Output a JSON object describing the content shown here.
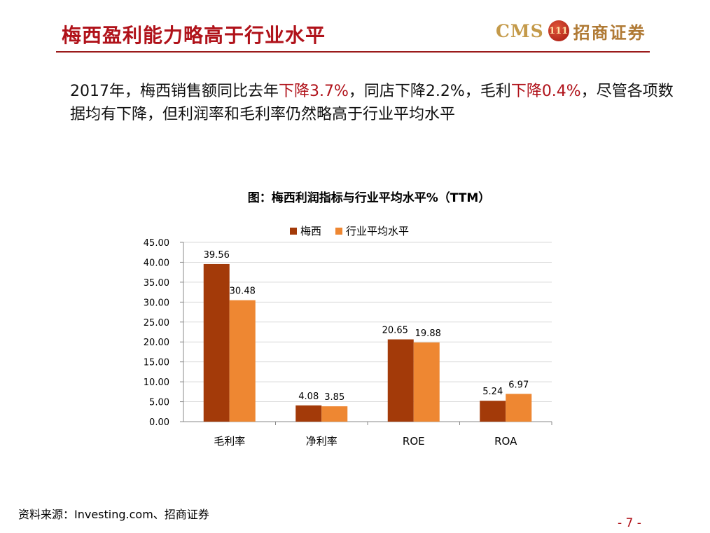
{
  "header": {
    "title": "梅西盈利能力略高于行业水平",
    "logo_cms": "CMS",
    "logo_mark": "111",
    "logo_cn": "招商证券"
  },
  "body": {
    "p1": "2017年，梅西销售额同比去年",
    "p2": "下降3.7%",
    "p3": "，同店下降2.2%，毛利",
    "p4": "下降0.4%",
    "p5": "，尽管各项数据均有下降，但利润率和毛利率仍然略高于行业平均水平"
  },
  "chart_data": {
    "type": "bar",
    "title": "图：梅西利润指标与行业平均水平%（TTM）",
    "categories": [
      "毛利率",
      "净利率",
      "ROE",
      "ROA"
    ],
    "series": [
      {
        "name": "梅西",
        "values": [
          39.56,
          4.08,
          20.65,
          5.24
        ],
        "labels": [
          "39.56",
          "4.08",
          "20.65",
          "5.24"
        ],
        "color": "#a33a09"
      },
      {
        "name": "行业平均水平",
        "values": [
          30.48,
          3.85,
          19.88,
          6.97
        ],
        "labels": [
          "30.48",
          "3.85",
          "19.88",
          "6.97"
        ],
        "color": "#ee8732"
      }
    ],
    "ylim": [
      0,
      45
    ],
    "yticks": [
      "0.00",
      "5.00",
      "10.00",
      "15.00",
      "20.00",
      "25.00",
      "30.00",
      "35.00",
      "40.00",
      "45.00"
    ],
    "grid": true,
    "legend": "top-center"
  },
  "footer": {
    "source": "资料来源：Investing.com、招商证券",
    "page": "- 7 -"
  }
}
